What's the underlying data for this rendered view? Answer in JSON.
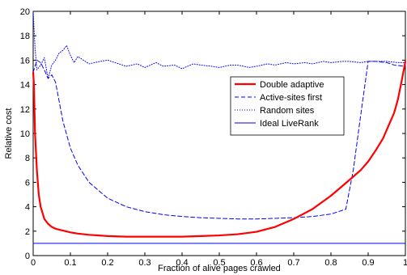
{
  "chart_data": {
    "type": "line",
    "title": "",
    "xlabel": "Fraction of alive pages crawled",
    "ylabel": "Relative cost",
    "xlim": [
      0,
      1
    ],
    "ylim": [
      0,
      20
    ],
    "x_ticks": [
      "0",
      "0.1",
      "0.2",
      "0.3",
      "0.4",
      "0.5",
      "0.6",
      "0.7",
      "0.8",
      "0.9",
      "1"
    ],
    "y_ticks": [
      "0",
      "2",
      "4",
      "6",
      "8",
      "10",
      "12",
      "14",
      "16",
      "18",
      "20"
    ],
    "grid": false,
    "legend_position": "right-center",
    "series": [
      {
        "name": "Double adaptive",
        "color": "#ff0000",
        "style": "solid-thick",
        "x": [
          0.0,
          0.002,
          0.005,
          0.01,
          0.015,
          0.02,
          0.03,
          0.04,
          0.05,
          0.06,
          0.08,
          0.1,
          0.12,
          0.15,
          0.2,
          0.25,
          0.3,
          0.35,
          0.4,
          0.45,
          0.5,
          0.55,
          0.6,
          0.65,
          0.7,
          0.75,
          0.8,
          0.85,
          0.88,
          0.9,
          0.92,
          0.94,
          0.95,
          0.97,
          0.98,
          0.99,
          1.0
        ],
        "y": [
          15.0,
          14.0,
          10.0,
          7.0,
          5.0,
          4.0,
          3.0,
          2.6,
          2.35,
          2.2,
          2.05,
          1.9,
          1.8,
          1.7,
          1.6,
          1.55,
          1.55,
          1.55,
          1.55,
          1.6,
          1.65,
          1.75,
          1.95,
          2.35,
          3.0,
          3.8,
          4.9,
          6.2,
          7.0,
          7.7,
          8.6,
          9.6,
          10.3,
          11.7,
          12.8,
          14.3,
          15.9
        ]
      },
      {
        "name": "Active-sites first",
        "color": "#0000ff",
        "style": "dashed",
        "x": [
          0.0,
          0.005,
          0.01,
          0.02,
          0.03,
          0.04,
          0.05,
          0.06,
          0.08,
          0.1,
          0.12,
          0.15,
          0.2,
          0.25,
          0.3,
          0.35,
          0.4,
          0.45,
          0.5,
          0.55,
          0.6,
          0.65,
          0.7,
          0.75,
          0.8,
          0.84,
          0.86,
          0.88,
          0.9,
          0.92,
          0.95,
          0.97,
          1.0
        ],
        "y": [
          15.0,
          15.5,
          16.0,
          15.8,
          15.2,
          14.5,
          14.8,
          14.2,
          11.0,
          8.8,
          7.4,
          6.0,
          4.7,
          4.0,
          3.6,
          3.35,
          3.2,
          3.1,
          3.05,
          3.0,
          3.0,
          3.05,
          3.1,
          3.2,
          3.4,
          3.8,
          7.0,
          11.5,
          15.9,
          15.9,
          15.8,
          15.6,
          15.5
        ]
      },
      {
        "name": "Random sites",
        "color": "#0000ff",
        "style": "dotted",
        "x": [
          0.0,
          0.005,
          0.01,
          0.02,
          0.03,
          0.04,
          0.05,
          0.06,
          0.07,
          0.08,
          0.09,
          0.1,
          0.11,
          0.12,
          0.13,
          0.15,
          0.18,
          0.2,
          0.22,
          0.25,
          0.28,
          0.3,
          0.33,
          0.35,
          0.38,
          0.4,
          0.43,
          0.45,
          0.48,
          0.5,
          0.53,
          0.55,
          0.58,
          0.6,
          0.63,
          0.65,
          0.68,
          0.7,
          0.73,
          0.75,
          0.78,
          0.8,
          0.83,
          0.85,
          0.88,
          0.9,
          0.93,
          0.95,
          0.98,
          1.0
        ],
        "y": [
          20.0,
          17.0,
          15.2,
          15.6,
          16.2,
          14.5,
          15.6,
          16.0,
          16.6,
          16.8,
          17.2,
          16.4,
          15.8,
          16.3,
          16.1,
          15.7,
          15.9,
          16.0,
          15.8,
          15.5,
          15.7,
          15.4,
          15.8,
          15.5,
          15.6,
          15.3,
          15.7,
          15.6,
          15.5,
          15.4,
          15.6,
          15.6,
          15.4,
          15.5,
          15.7,
          15.6,
          15.8,
          15.7,
          15.8,
          15.7,
          15.9,
          15.8,
          15.9,
          15.9,
          15.8,
          15.9,
          15.9,
          15.9,
          15.8,
          15.8
        ]
      },
      {
        "name": "Ideal LiveRank",
        "color": "#0000ff",
        "style": "solid-thin",
        "x": [
          0.0,
          1.0
        ],
        "y": [
          1.0,
          1.0
        ]
      }
    ]
  }
}
